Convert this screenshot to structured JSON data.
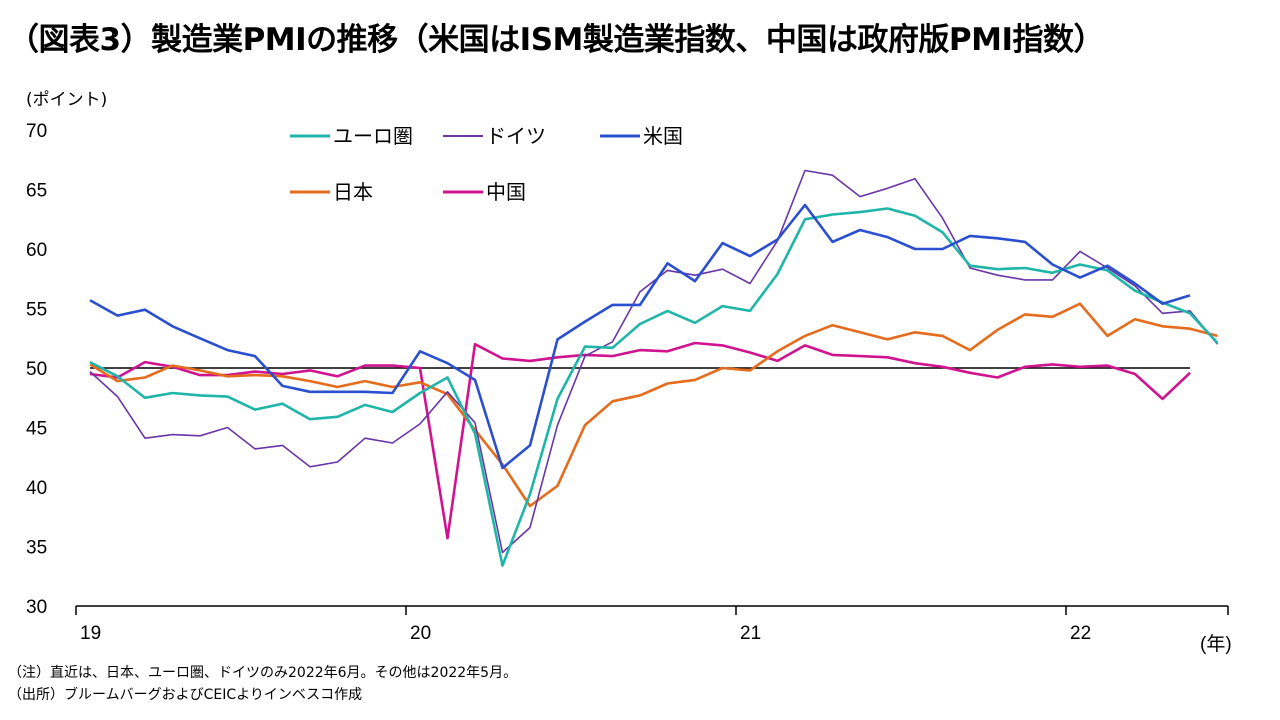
{
  "title": "（図表3）製造業PMIの推移（米国はISM製造業指数、中国は政府版PMI指数）",
  "notes": {
    "note": "（注）直近は、日本、ユーロ圏、ドイツのみ2022年6月。その他は2022年5月。",
    "source": "（出所）ブルームバーグおよびCEICよりインベスコ作成"
  },
  "chart_data": {
    "type": "line",
    "title": "",
    "ylabel": "(ポイント)",
    "xlabel": "(年)",
    "ylim": [
      30,
      70
    ],
    "yticks": [
      30,
      35,
      40,
      45,
      50,
      55,
      60,
      65,
      70
    ],
    "xticks": [
      {
        "label": "19",
        "month_index": 0
      },
      {
        "label": "20",
        "month_index": 12
      },
      {
        "label": "21",
        "month_index": 24
      },
      {
        "label": "22",
        "month_index": 36
      }
    ],
    "x_start": "2019-01",
    "x_end": "2022-06",
    "reference_line": 50,
    "legend_position": "top-left",
    "series": [
      {
        "name": "ユーロ圏",
        "color": "#1fb5a8",
        "values": [
          50.5,
          49.3,
          47.5,
          47.9,
          47.7,
          47.6,
          46.5,
          47.0,
          45.7,
          45.9,
          46.9,
          46.3,
          47.9,
          49.2,
          44.5,
          33.4,
          39.4,
          47.4,
          51.8,
          51.7,
          53.7,
          54.8,
          53.8,
          55.2,
          54.8,
          57.9,
          62.5,
          62.9,
          63.1,
          63.4,
          62.8,
          61.4,
          58.6,
          58.3,
          58.4,
          58.0,
          58.7,
          58.2,
          56.5,
          55.5,
          54.6,
          52.1
        ]
      },
      {
        "name": "ドイツ",
        "color": "#6a35a6",
        "values": [
          49.7,
          47.6,
          44.1,
          44.4,
          44.3,
          45.0,
          43.2,
          43.5,
          41.7,
          42.1,
          44.1,
          43.7,
          45.3,
          48.0,
          45.4,
          34.5,
          36.6,
          45.2,
          51.0,
          52.2,
          56.4,
          58.2,
          57.8,
          58.3,
          57.1,
          60.7,
          66.6,
          66.2,
          64.4,
          65.1,
          65.9,
          62.6,
          58.4,
          57.8,
          57.4,
          57.4,
          59.8,
          58.4,
          56.9,
          54.6,
          54.8,
          52.0
        ]
      },
      {
        "name": "米国",
        "color": "#2a4fcf",
        "values": [
          55.7,
          54.4,
          54.9,
          53.5,
          52.5,
          51.5,
          51.0,
          48.5,
          48.0,
          48.0,
          48.0,
          47.9,
          51.4,
          50.4,
          49.0,
          41.6,
          43.5,
          52.4,
          53.9,
          55.3,
          55.3,
          58.8,
          57.3,
          60.5,
          59.4,
          60.8,
          63.7,
          60.6,
          61.6,
          61.0,
          60.0,
          60.0,
          61.1,
          60.9,
          60.6,
          58.7,
          57.6,
          58.6,
          57.1,
          55.4,
          56.1
        ]
      },
      {
        "name": "日本",
        "color": "#e46c1c",
        "values": [
          50.3,
          48.9,
          49.2,
          50.2,
          49.8,
          49.3,
          49.4,
          49.3,
          48.9,
          48.4,
          48.9,
          48.4,
          48.8,
          47.8,
          44.8,
          41.9,
          38.4,
          40.1,
          45.2,
          47.2,
          47.7,
          48.7,
          49.0,
          50.0,
          49.8,
          51.4,
          52.7,
          53.6,
          53.0,
          52.4,
          53.0,
          52.7,
          51.5,
          53.2,
          54.5,
          54.3,
          55.4,
          52.7,
          54.1,
          53.5,
          53.3,
          52.7
        ]
      },
      {
        "name": "中国",
        "color": "#d0138f",
        "values": [
          49.5,
          49.2,
          50.5,
          50.1,
          49.4,
          49.4,
          49.7,
          49.5,
          49.8,
          49.3,
          50.2,
          50.2,
          50.0,
          35.7,
          52.0,
          50.8,
          50.6,
          50.9,
          51.1,
          51.0,
          51.5,
          51.4,
          52.1,
          51.9,
          51.3,
          50.6,
          51.9,
          51.1,
          51.0,
          50.9,
          50.4,
          50.1,
          49.6,
          49.2,
          50.1,
          50.3,
          50.1,
          50.2,
          49.5,
          47.4,
          49.6
        ]
      }
    ]
  }
}
